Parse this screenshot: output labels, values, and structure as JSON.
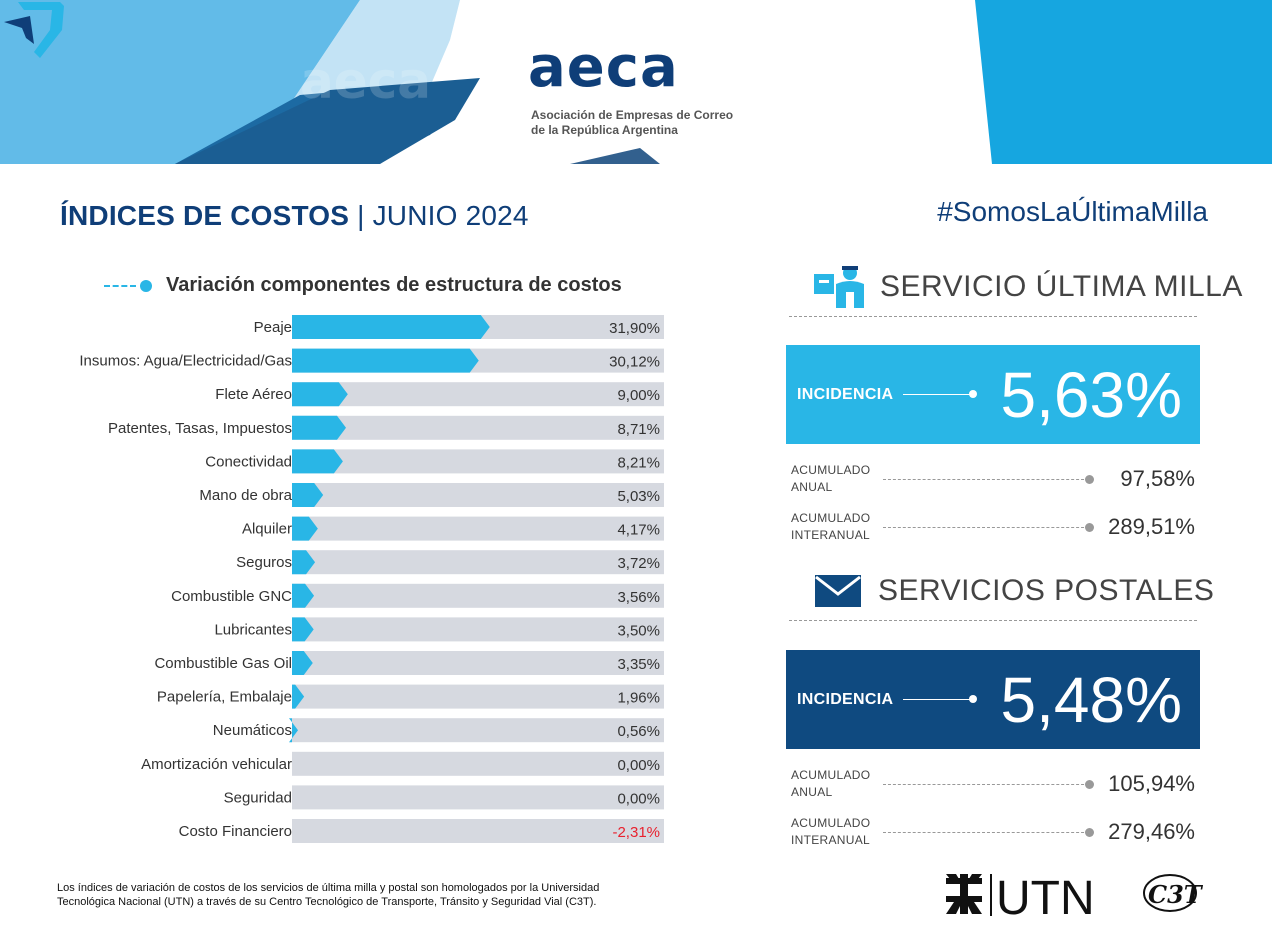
{
  "header": {
    "logo_text": "aeca",
    "logo_subtitle_1": "Asociación de Empresas de Correo",
    "logo_subtitle_2": "de la República Argentina"
  },
  "page": {
    "title_strong": "ÍNDICES DE COSTOS",
    "title_sep": "|",
    "title_period": "JUNIO 2024",
    "hashtag": "#SomosLaÚltimaMilla"
  },
  "chart_data": {
    "type": "bar",
    "orientation": "horizontal",
    "title": "Variación componentes de estructura de costos",
    "categories": [
      "Peaje",
      "Insumos: Agua/Electricidad/Gas",
      "Flete Aéreo",
      "Patentes, Tasas, Impuestos",
      "Conectividad",
      "Mano de obra",
      "Alquiler",
      "Seguros",
      "Combustible GNC",
      "Lubricantes",
      "Combustible Gas Oil",
      "Papelería, Embalaje",
      "Neumáticos",
      "Amortización vehicular",
      "Seguridad",
      "Costo Financiero"
    ],
    "values": [
      31.9,
      30.12,
      9.0,
      8.71,
      8.21,
      5.03,
      4.17,
      3.72,
      3.56,
      3.5,
      3.35,
      1.96,
      0.56,
      0.0,
      0.0,
      -2.31
    ],
    "value_labels": [
      "31,90%",
      "30,12%",
      "9,00%",
      "8,71%",
      "8,21%",
      "5,03%",
      "4,17%",
      "3,72%",
      "3,56%",
      "3,50%",
      "3,35%",
      "1,96%",
      "0,56%",
      "0,00%",
      "0,00%",
      "-2,31%"
    ],
    "xlim": [
      0,
      60
    ],
    "bar_color": "#29b6e6",
    "track_color": "#d6d9e0",
    "negative_color": "#e8212e",
    "grid": false,
    "legend": "none"
  },
  "last_mile": {
    "heading": "SERVICIO ÚLTIMA MILLA",
    "incidence_label": "INCIDENCIA",
    "incidence_value": "5,63%",
    "box_color": "#29b6e6",
    "annual_label_1": "ACUMULADO",
    "annual_label_2": "ANUAL",
    "annual_value": "97,58%",
    "interannual_label_1": "ACUMULADO",
    "interannual_label_2": "INTERANUAL",
    "interannual_value": "289,51%"
  },
  "postal": {
    "heading": "SERVICIOS POSTALES",
    "incidence_label": "INCIDENCIA",
    "incidence_value": "5,48%",
    "box_color": "#0f4a80",
    "annual_label_1": "ACUMULADO",
    "annual_label_2": "ANUAL",
    "annual_value": "105,94%",
    "interannual_label_1": "ACUMULADO",
    "interannual_label_2": "INTERANUAL",
    "interannual_value": "279,46%"
  },
  "footer": {
    "note_1": "Los índices de variación de costos de los servicios de última milla y postal son homologados por la Universidad",
    "note_2": "Tecnológica Nacional (UTN) a través de su Centro Tecnológico de Transporte, Tránsito y Seguridad Vial (C3T).",
    "utn_text": "UTN",
    "c3t_text": "C3T"
  },
  "icons": [
    "courier-icon",
    "envelope-icon",
    "utn-emblem-icon",
    "aeca-logo-mark-icon"
  ]
}
